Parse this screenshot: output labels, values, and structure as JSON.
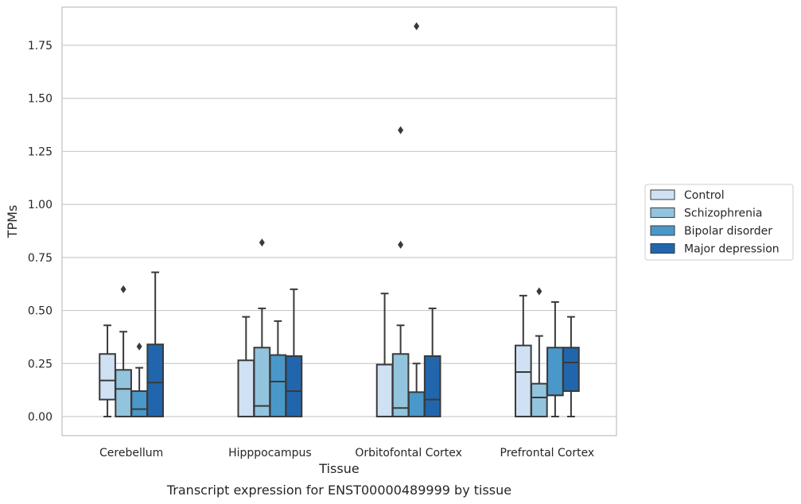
{
  "chart_data": {
    "type": "boxplot",
    "title": "Transcript expression for ENST00000489999 by tissue",
    "xlabel": "Tissue",
    "ylabel": "TPMs",
    "categories": [
      "Cerebellum",
      "Hipppocampus",
      "Orbitofontal Cortex",
      "Prefrontal Cortex"
    ],
    "ylim": [
      -0.09,
      1.93
    ],
    "yticks": [
      "0.00",
      "0.25",
      "0.50",
      "0.75",
      "1.00",
      "1.25",
      "1.50",
      "1.75"
    ],
    "grid": true,
    "legend_position": "right",
    "colors": {
      "Control": "#cfe1f2",
      "Schizophrenia": "#93c4de",
      "Bipolar disorder": "#4a98c9",
      "Major depression": "#2166ac",
      "box_edge": "#3a3a3a",
      "grid": "#cccccc",
      "frame": "#cccccc"
    },
    "series": [
      {
        "name": "Control",
        "boxes": [
          {
            "whislo": 0.0,
            "q1": 0.08,
            "med": 0.17,
            "q3": 0.295,
            "whishi": 0.43,
            "fliers": []
          },
          {
            "whislo": 0.0,
            "q1": 0.0,
            "med": 0.0,
            "q3": 0.265,
            "whishi": 0.47,
            "fliers": []
          },
          {
            "whislo": 0.0,
            "q1": 0.0,
            "med": 0.0,
            "q3": 0.245,
            "whishi": 0.58,
            "fliers": []
          },
          {
            "whislo": 0.0,
            "q1": 0.0,
            "med": 0.21,
            "q3": 0.335,
            "whishi": 0.57,
            "fliers": []
          }
        ]
      },
      {
        "name": "Schizophrenia",
        "boxes": [
          {
            "whislo": 0.0,
            "q1": 0.0,
            "med": 0.13,
            "q3": 0.22,
            "whishi": 0.4,
            "fliers": [
              0.6
            ]
          },
          {
            "whislo": 0.0,
            "q1": 0.0,
            "med": 0.05,
            "q3": 0.325,
            "whishi": 0.51,
            "fliers": [
              0.82
            ]
          },
          {
            "whislo": 0.0,
            "q1": 0.0,
            "med": 0.04,
            "q3": 0.295,
            "whishi": 0.43,
            "fliers": [
              0.81,
              1.35
            ]
          },
          {
            "whislo": 0.0,
            "q1": 0.0,
            "med": 0.09,
            "q3": 0.155,
            "whishi": 0.38,
            "fliers": [
              0.59
            ]
          }
        ]
      },
      {
        "name": "Bipolar disorder",
        "boxes": [
          {
            "whislo": 0.0,
            "q1": 0.0,
            "med": 0.035,
            "q3": 0.12,
            "whishi": 0.23,
            "fliers": [
              0.33
            ]
          },
          {
            "whislo": 0.0,
            "q1": 0.0,
            "med": 0.165,
            "q3": 0.29,
            "whishi": 0.45,
            "fliers": []
          },
          {
            "whislo": 0.0,
            "q1": 0.0,
            "med": 0.0,
            "q3": 0.115,
            "whishi": 0.25,
            "fliers": [
              1.84
            ]
          },
          {
            "whislo": 0.0,
            "q1": 0.1,
            "med": 0.1,
            "q3": 0.325,
            "whishi": 0.54,
            "fliers": []
          }
        ]
      },
      {
        "name": "Major depression",
        "boxes": [
          {
            "whislo": 0.0,
            "q1": 0.0,
            "med": 0.16,
            "q3": 0.34,
            "whishi": 0.68,
            "fliers": []
          },
          {
            "whislo": 0.0,
            "q1": 0.0,
            "med": 0.12,
            "q3": 0.285,
            "whishi": 0.6,
            "fliers": []
          },
          {
            "whislo": 0.0,
            "q1": 0.0,
            "med": 0.08,
            "q3": 0.285,
            "whishi": 0.51,
            "fliers": []
          },
          {
            "whislo": 0.0,
            "q1": 0.12,
            "med": 0.255,
            "q3": 0.325,
            "whishi": 0.47,
            "fliers": []
          }
        ]
      }
    ]
  }
}
